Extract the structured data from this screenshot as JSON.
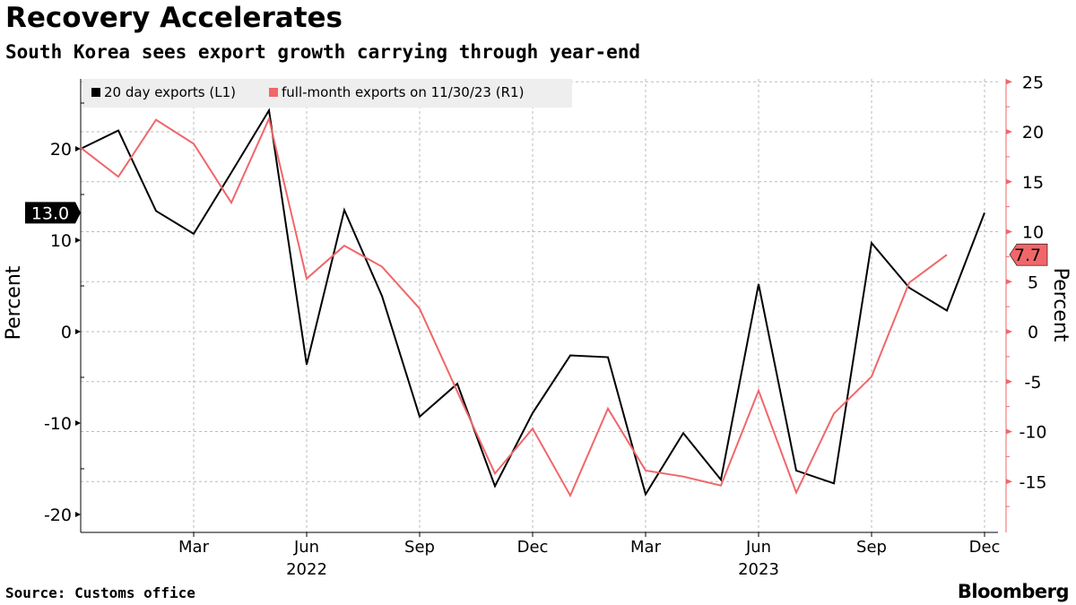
{
  "title": "Recovery Accelerates",
  "subtitle": "South Korea sees export growth carrying through year-end",
  "source": "Source: Customs office",
  "logo": "Bloomberg",
  "chart_data": {
    "type": "line",
    "x": [
      "Dec 2021",
      "Jan 2022",
      "Feb 2022",
      "Mar 2022",
      "Apr 2022",
      "May 2022",
      "Jun 2022",
      "Jul 2022",
      "Aug 2022",
      "Sep 2022",
      "Oct 2022",
      "Nov 2022",
      "Dec 2022",
      "Jan 2023",
      "Feb 2023",
      "Mar 2023",
      "Apr 2023",
      "May 2023",
      "Jun 2023",
      "Jul 2023",
      "Aug 2023",
      "Sep 2023",
      "Oct 2023",
      "Nov 2023",
      "Dec 2023"
    ],
    "x_ticks": [
      {
        "i": 3,
        "label": "Mar"
      },
      {
        "i": 6,
        "label": "Jun",
        "year": "2022"
      },
      {
        "i": 9,
        "label": "Sep"
      },
      {
        "i": 12,
        "label": "Dec"
      },
      {
        "i": 15,
        "label": "Mar"
      },
      {
        "i": 18,
        "label": "Jun",
        "year": "2023"
      },
      {
        "i": 21,
        "label": "Sep"
      },
      {
        "i": 24,
        "label": "Dec"
      }
    ],
    "series": [
      {
        "name": "20 day exports (L1)",
        "axis": "left",
        "color": "#000000",
        "last_label": "13.0",
        "values": [
          20,
          22,
          13.2,
          10.7,
          17.4,
          24.2,
          -3.6,
          13.3,
          3.9,
          -9.3,
          -5.7,
          -16.9,
          -8.9,
          -2.6,
          -2.8,
          -17.8,
          -11.1,
          -16.2,
          5.2,
          -15.2,
          -16.6,
          9.7,
          4.8,
          2.3,
          13.0
        ]
      },
      {
        "name": "full-month exports on 11/30/23 (R1)",
        "axis": "right",
        "color": "#f0676a",
        "last_label": "7.7",
        "values": [
          18.4,
          15.5,
          21.2,
          18.8,
          12.9,
          21.3,
          5.3,
          8.6,
          6.5,
          2.3,
          -6.0,
          -14.2,
          -9.7,
          -16.4,
          -7.7,
          -13.9,
          -14.5,
          -15.4,
          -5.9,
          -16.1,
          -8.2,
          -4.5,
          4.9,
          7.7,
          null
        ]
      }
    ],
    "left_axis": {
      "label": "Percent",
      "ylim": [
        -22,
        27.5
      ],
      "ticks": [
        20,
        10,
        0,
        -10,
        -20
      ]
    },
    "right_axis": {
      "label": "Percent",
      "ylim": [
        -20,
        25.4
      ],
      "ticks": [
        25,
        20,
        15,
        10,
        5,
        0,
        -5,
        -10,
        -15
      ]
    },
    "grid": true,
    "legend": "top-left"
  }
}
